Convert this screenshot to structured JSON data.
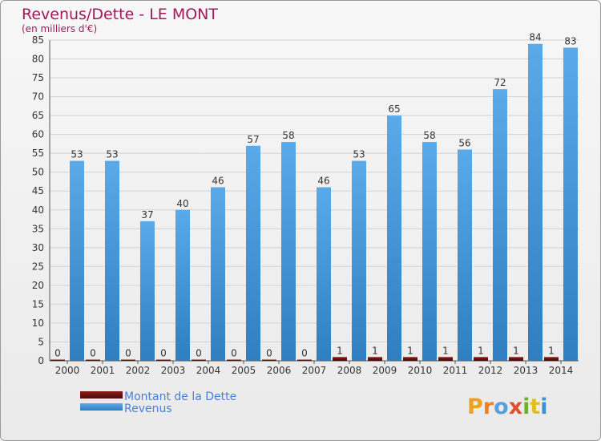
{
  "chart_data": {
    "type": "bar",
    "title": "Revenus/Dette - LE MONT",
    "subtitle": "(en milliers d'€)",
    "categories": [
      "2000",
      "2001",
      "2002",
      "2003",
      "2004",
      "2005",
      "2006",
      "2007",
      "2008",
      "2009",
      "2010",
      "2011",
      "2012",
      "2013",
      "2014"
    ],
    "series": [
      {
        "name": "Montant de la Dette",
        "color": "#6b0f0f",
        "values": [
          0,
          0,
          0,
          0,
          0,
          0,
          0,
          0,
          1,
          1,
          1,
          1,
          1,
          1,
          1
        ]
      },
      {
        "name": "Revenus",
        "color": "#4f9fe0",
        "values": [
          53,
          53,
          37,
          40,
          46,
          57,
          58,
          46,
          53,
          65,
          58,
          56,
          72,
          84,
          83
        ]
      }
    ],
    "ylim": [
      0,
      85
    ],
    "ytick_step": 5,
    "grid": true,
    "legend_position": "bottom-left"
  },
  "logo": {
    "text": "Proxiti"
  }
}
